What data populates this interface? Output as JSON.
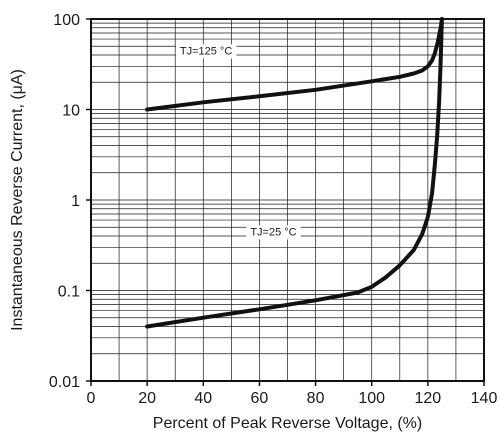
{
  "chart_data": {
    "type": "line",
    "xlabel": "Percent of Peak Reverse Voltage, (%)",
    "ylabel": "Instantaneous Reverse Current, (μA)",
    "xlim": [
      0,
      140
    ],
    "ylim": [
      0.01,
      100
    ],
    "yscale": "log",
    "grid": true,
    "x_ticks": [
      0,
      20,
      40,
      60,
      80,
      100,
      120,
      140
    ],
    "x_tick_labels": [
      "0",
      "20",
      "40",
      "60",
      "80",
      "100",
      "120",
      "140"
    ],
    "y_ticks": [
      0.01,
      0.1,
      1,
      10,
      100
    ],
    "y_tick_labels": [
      "0.01",
      "0.1",
      "1",
      "10",
      "100"
    ],
    "series": [
      {
        "x": [
          20,
          40,
          60,
          80,
          100,
          110,
          115,
          118,
          120,
          121.5,
          122.5,
          123.5,
          124.2,
          124.7,
          125
        ],
        "y": [
          10,
          12,
          14,
          16.5,
          20.5,
          23,
          25,
          27,
          30,
          35,
          42,
          55,
          70,
          85,
          100
        ]
      },
      {
        "x": [
          20,
          40,
          60,
          80,
          95,
          100,
          105,
          110,
          115,
          118,
          120,
          121.5,
          122.5,
          123.3,
          124,
          124.5,
          125
        ],
        "y": [
          0.04,
          0.05,
          0.062,
          0.078,
          0.095,
          0.11,
          0.14,
          0.19,
          0.28,
          0.42,
          0.65,
          1.2,
          2.5,
          5,
          12,
          30,
          100
        ]
      }
    ],
    "annotations": [
      {
        "text": "TJ=125 °C",
        "x": 41,
        "y": 45
      },
      {
        "text": "TJ=25 °C",
        "x": 65,
        "y": 0.45
      }
    ],
    "line_color": "#111111"
  }
}
